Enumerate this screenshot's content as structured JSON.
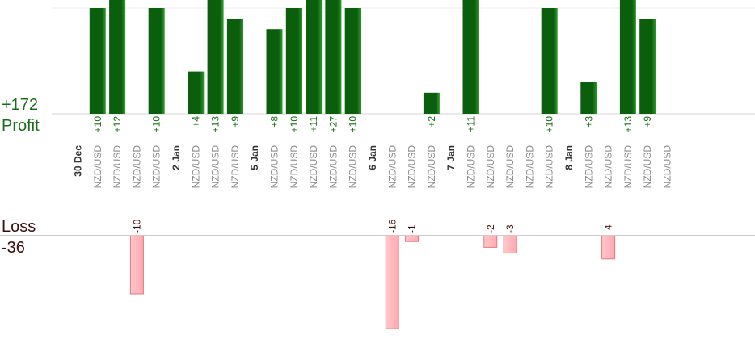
{
  "chart_data": {
    "type": "bar",
    "profit_total": "+172",
    "profit_label": "Profit",
    "loss_label": "Loss",
    "loss_total": "-36",
    "categories": [
      "30 Dec",
      "NZD/USD",
      "NZD/USD",
      "NZD/USD",
      "NZD/USD",
      "2 Jan",
      "NZD/USD",
      "NZD/USD",
      "NZD/USD",
      "5 Jan",
      "NZD/USD",
      "NZD/USD",
      "NZD/USD",
      "NZD/USD",
      "NZD/USD",
      "6 Jan",
      "NZD/USD",
      "NZD/USD",
      "NZD/USD",
      "7 Jan",
      "NZD/USD",
      "NZD/USD",
      "NZD/USD",
      "NZD/USD",
      "NZD/USD",
      "8 Jan",
      "NZD/USD",
      "NZD/USD",
      "NZD/USD",
      "NZD/USD",
      "NZD/USD"
    ],
    "is_date": [
      true,
      false,
      false,
      false,
      false,
      true,
      false,
      false,
      false,
      true,
      false,
      false,
      false,
      false,
      false,
      true,
      false,
      false,
      false,
      true,
      false,
      false,
      false,
      false,
      false,
      true,
      false,
      false,
      false,
      false,
      false
    ],
    "values": [
      null,
      10,
      12,
      -10,
      10,
      null,
      4,
      13,
      9,
      null,
      8,
      10,
      11,
      27,
      10,
      null,
      -16,
      -1,
      2,
      null,
      11,
      -2,
      -3,
      null,
      10,
      null,
      3,
      -4,
      13,
      9,
      null
    ],
    "labels": [
      "",
      "+10",
      "+12",
      "-10",
      "+10",
      "",
      "+4",
      "+13",
      "+9",
      "",
      "+8",
      "+10",
      "+11",
      "+27",
      "+10",
      "",
      "-16",
      "-1",
      "+2",
      "",
      "+11",
      "-2",
      "-3",
      "",
      "+10",
      "",
      "+3",
      "-4",
      "+13",
      "+9",
      ""
    ],
    "colors": {
      "profit": "#0b5e0b",
      "profit_light": "#2f9a2f",
      "loss": "#ffc0c4",
      "loss_border": "#e07a80",
      "profit_text": "#1a6e1a",
      "loss_text": "#3a0d0d"
    }
  }
}
